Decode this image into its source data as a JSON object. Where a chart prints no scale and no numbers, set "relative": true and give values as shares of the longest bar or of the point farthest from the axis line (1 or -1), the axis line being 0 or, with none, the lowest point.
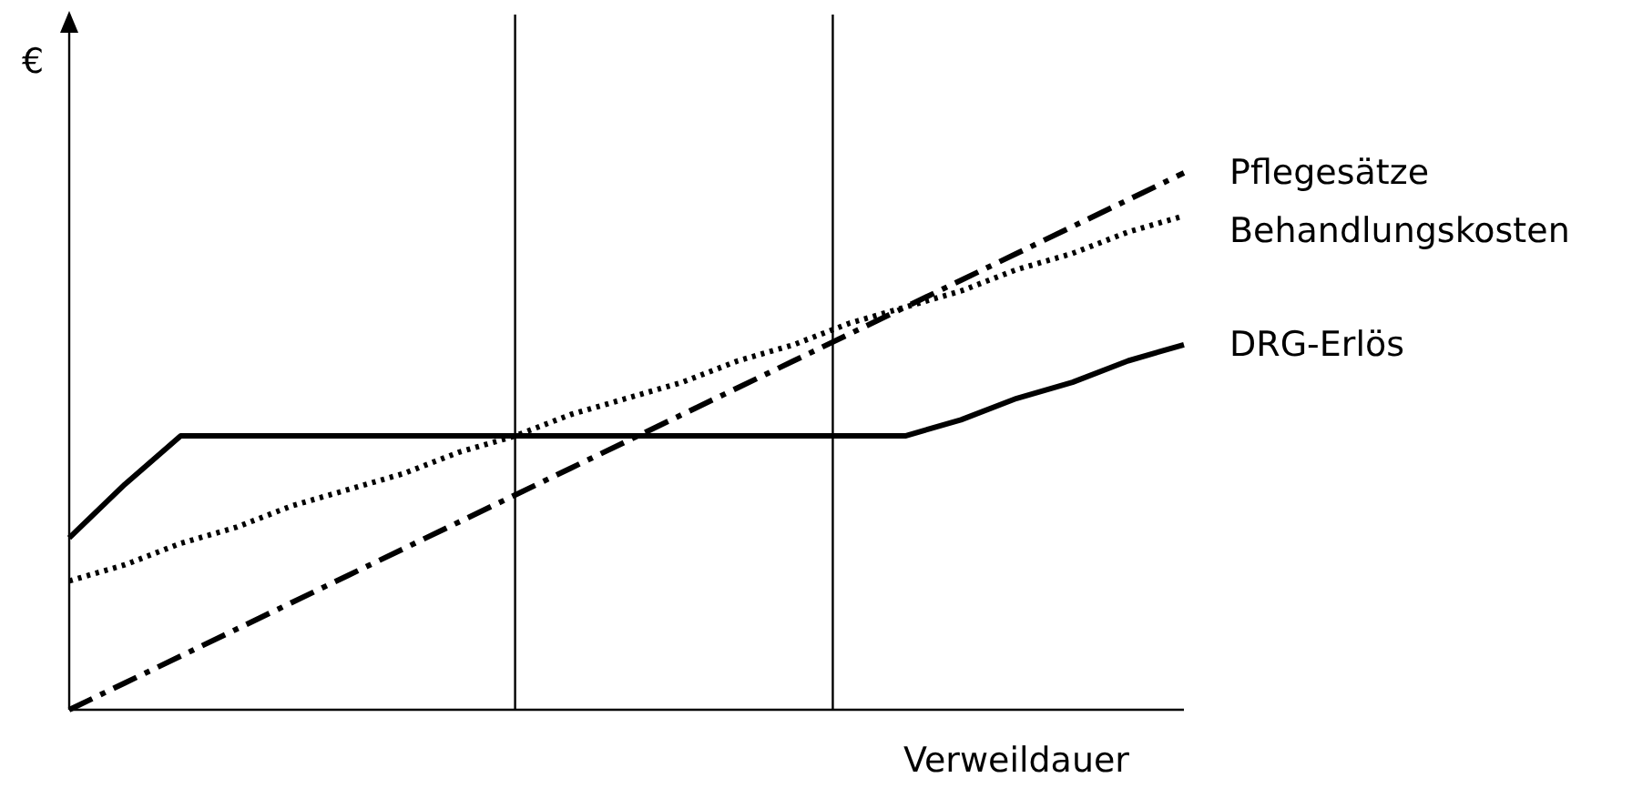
{
  "chart_data": {
    "type": "line",
    "relative": true,
    "xlabel": "Verweildauer",
    "ylabel": "€",
    "tick_labels": false,
    "grid": false,
    "legend": false,
    "marker": "none",
    "categories": [
      null,
      null,
      null,
      null,
      null,
      null,
      null,
      null,
      null,
      null,
      null,
      null,
      null,
      null,
      null,
      null,
      null,
      null,
      null,
      null,
      null
    ],
    "series": [
      {
        "name": "Pflegesätze",
        "color": "#000000",
        "line_style": "dashdot",
        "values": [
          0,
          0.05,
          0.1,
          0.15,
          0.2,
          0.25,
          0.3,
          0.35,
          0.4,
          0.45,
          0.5,
          0.55,
          0.6,
          0.65,
          0.7,
          0.75,
          0.8,
          0.85,
          0.9,
          0.95,
          1
        ]
      },
      {
        "name": "Behandlungskosten",
        "color": "#000000",
        "line_style": "dotted",
        "values": [
          0.24,
          0.27,
          0.31,
          0.34,
          0.38,
          0.41,
          0.44,
          0.48,
          0.51,
          0.55,
          0.58,
          0.61,
          0.65,
          0.68,
          0.72,
          0.75,
          0.78,
          0.82,
          0.85,
          0.89,
          0.92
        ]
      },
      {
        "name": "DRG-Erlös",
        "color": "#000000",
        "line_style": "solid",
        "values": [
          0.32,
          0.42,
          0.51,
          0.51,
          0.51,
          0.51,
          0.51,
          0.51,
          0.51,
          0.51,
          0.51,
          0.51,
          0.51,
          0.51,
          0.51,
          0.51,
          0.54,
          0.58,
          0.61,
          0.65,
          0.68
        ]
      }
    ]
  }
}
